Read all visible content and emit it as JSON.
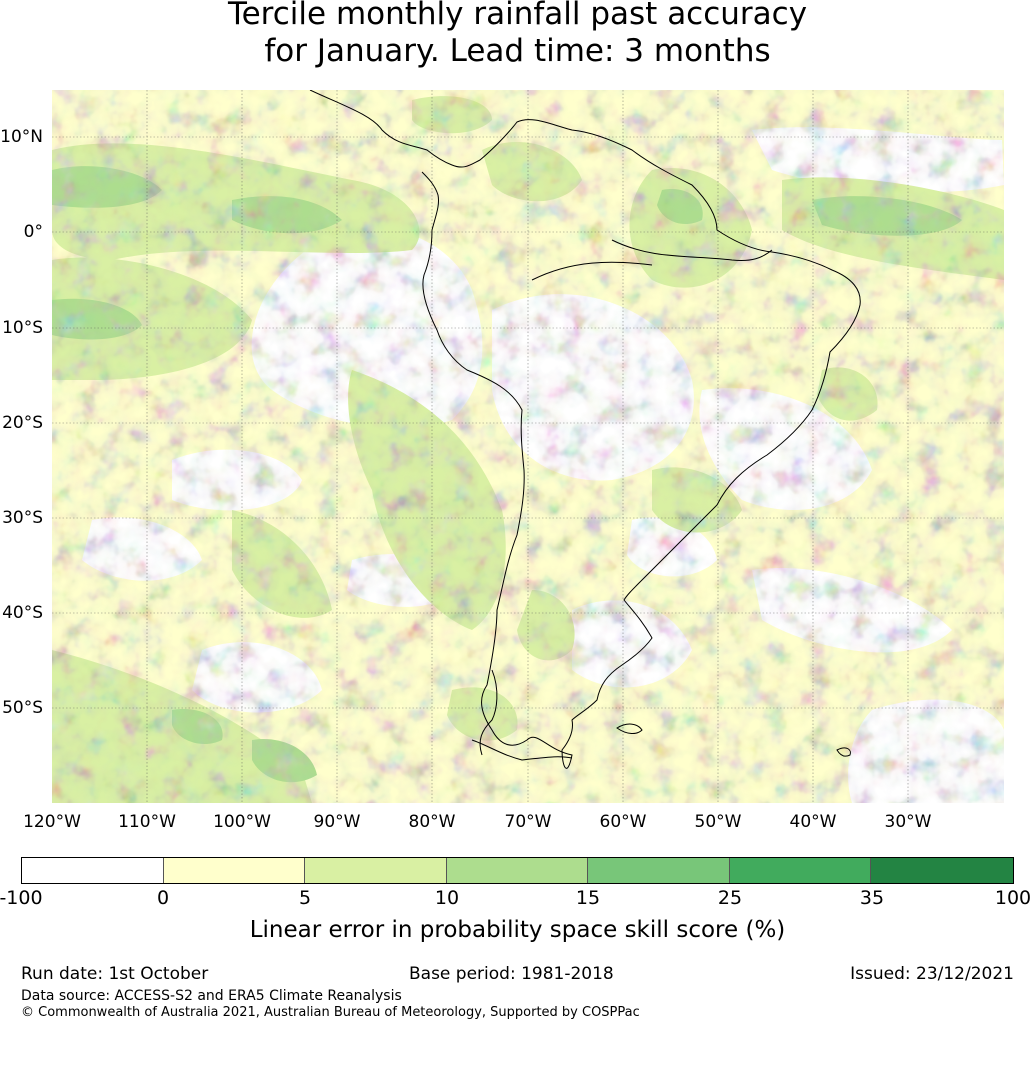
{
  "title": {
    "line1": "Tercile monthly rainfall past accuracy",
    "line2": "for January. Lead time: 3 months"
  },
  "map": {
    "latitude_labels": [
      "10°N",
      "0°",
      "10°S",
      "20°S",
      "30°S",
      "40°S",
      "50°S"
    ],
    "longitude_labels": [
      "120°W",
      "110°W",
      "100°W",
      "90°W",
      "80°W",
      "70°W",
      "60°W",
      "50°W",
      "40°W",
      "30°W"
    ],
    "region": "South America",
    "extent": {
      "lon_min": -120,
      "lon_max": -20,
      "lat_min": -60,
      "lat_max": 15
    }
  },
  "legend": {
    "ticks": [
      "-100",
      "0",
      "5",
      "10",
      "15",
      "25",
      "35",
      "100"
    ],
    "colors": [
      "#ffffff",
      "#ffffcc",
      "#d9f0a3",
      "#addd8e",
      "#78c679",
      "#41ab5d",
      "#238443"
    ],
    "label": "Linear error in probability space skill score (%)"
  },
  "footer": {
    "run_date": "Run date: 1st October",
    "base_period": "Base period: 1981-2018",
    "issued": "Issued: 23/12/2021",
    "data_source": "Data source: ACCESS-S2 and ERA5 Climate Reanalysis",
    "copyright": "© Commonwealth of Australia 2021, Australian Bureau of Meteorology, Supported by COSPPac"
  }
}
